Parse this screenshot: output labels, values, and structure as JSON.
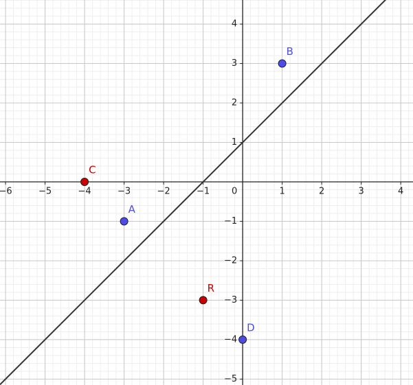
{
  "chart_data": {
    "type": "scatter",
    "xlim": [
      -6.14,
      4.31
    ],
    "ylim": [
      -5.15,
      4.61
    ],
    "xticks": [
      {
        "value": -6,
        "label": "−6"
      },
      {
        "value": -5,
        "label": "−5"
      },
      {
        "value": -4,
        "label": "−4"
      },
      {
        "value": -3,
        "label": "−3"
      },
      {
        "value": -2,
        "label": "−2"
      },
      {
        "value": -1,
        "label": "−1"
      },
      0,
      1,
      2,
      3,
      4
    ],
    "yticks": [
      {
        "value": -5,
        "label": "−5"
      },
      {
        "value": -4,
        "label": "−4"
      },
      {
        "value": -3,
        "label": "−3"
      },
      {
        "value": -2,
        "label": "−2"
      },
      {
        "value": -1,
        "label": "−1"
      },
      1,
      2,
      3,
      4
    ],
    "grid": true,
    "points": [
      {
        "name": "A",
        "x": -3,
        "y": -1,
        "color": "#4d4de6"
      },
      {
        "name": "B",
        "x": 1,
        "y": 3,
        "color": "#4d4de6"
      },
      {
        "name": "C",
        "x": -4,
        "y": 0,
        "color": "#cc0000"
      },
      {
        "name": "D",
        "x": 0,
        "y": -4,
        "color": "#4d4de6"
      },
      {
        "name": "R",
        "x": -1,
        "y": -3,
        "color": "#cc0000"
      }
    ],
    "lines": [
      {
        "slope": 1,
        "intercept": 1,
        "color": "#333333"
      }
    ]
  }
}
